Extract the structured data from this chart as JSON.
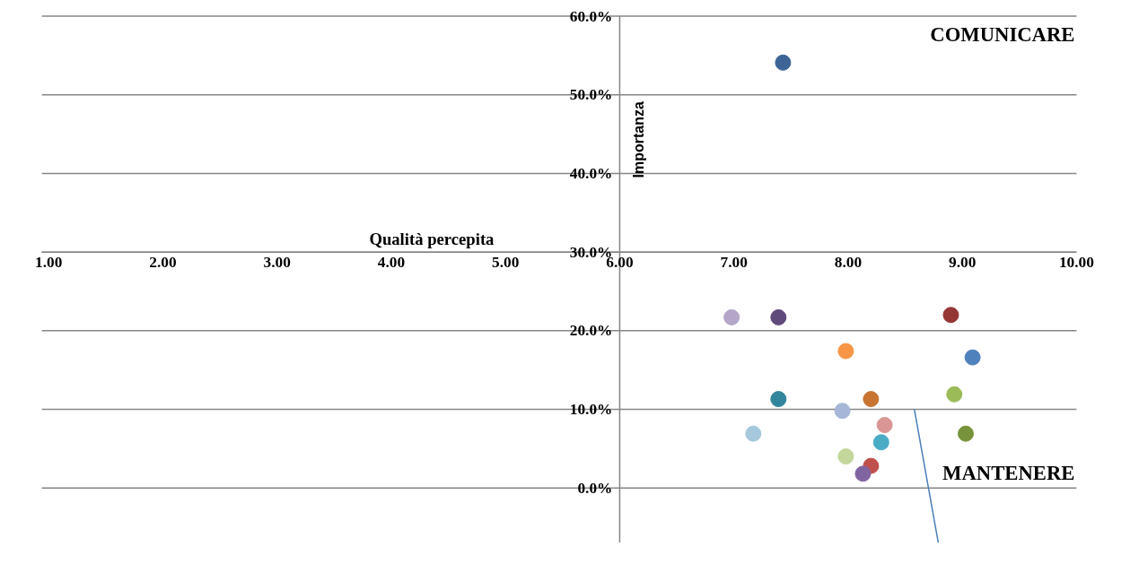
{
  "chart_data": {
    "type": "scatter",
    "xlabel": "Qualità percepita",
    "ylabel": "Importanza",
    "xlim": [
      0.94,
      10.0
    ],
    "ylim": [
      -7,
      60
    ],
    "xticks": [
      {
        "value": 1,
        "label": "1.00"
      },
      {
        "value": 2,
        "label": "2.00"
      },
      {
        "value": 3,
        "label": "3.00"
      },
      {
        "value": 4,
        "label": "4.00"
      },
      {
        "value": 5,
        "label": "5.00"
      },
      {
        "value": 6,
        "label": "6.00"
      },
      {
        "value": 7,
        "label": "7.00"
      },
      {
        "value": 8,
        "label": "8.00"
      },
      {
        "value": 9,
        "label": "9.00"
      },
      {
        "value": 10,
        "label": "10.00"
      }
    ],
    "yticks": [
      {
        "value": 0,
        "label": "0.0%"
      },
      {
        "value": 10,
        "label": "10.0%"
      },
      {
        "value": 20,
        "label": "20.0%"
      },
      {
        "value": 30,
        "label": "30.0%"
      },
      {
        "value": 40,
        "label": "40.0%"
      },
      {
        "value": 50,
        "label": "50.0%"
      },
      {
        "value": 60,
        "label": "60.0%"
      }
    ],
    "grid": "y",
    "marker": "circle",
    "annotations": [
      "COMUNICARE",
      "MANTENERE"
    ],
    "series": [
      {
        "x": [
          7.43,
          6.98,
          7.39,
          8.9,
          7.98,
          9.09,
          7.39,
          8.2,
          8.93,
          7.95,
          8.32,
          7.17,
          8.29,
          9.03,
          7.98,
          8.2,
          8.13
        ],
        "values": [
          54.1,
          21.7,
          21.7,
          22.0,
          17.4,
          16.6,
          11.3,
          11.3,
          11.9,
          9.8,
          8.0,
          6.9,
          5.8,
          6.9,
          4.0,
          2.8,
          1.8
        ],
        "colors": [
          "#3c6496",
          "#b3a6c9",
          "#604a7b",
          "#953735",
          "#f79646",
          "#4f81bd",
          "#31859c",
          "#c87533",
          "#9bbb59",
          "#a5b6d8",
          "#d99694",
          "#a5c8dc",
          "#4bacc6",
          "#77933c",
          "#c3d69b",
          "#c0504d",
          "#8064a2"
        ]
      },
      {
        "type": "line",
        "x": [
          8.58,
          8.79
        ],
        "values": [
          10,
          -7
        ],
        "color": "#4a7ebb",
        "marker": "none"
      }
    ]
  }
}
